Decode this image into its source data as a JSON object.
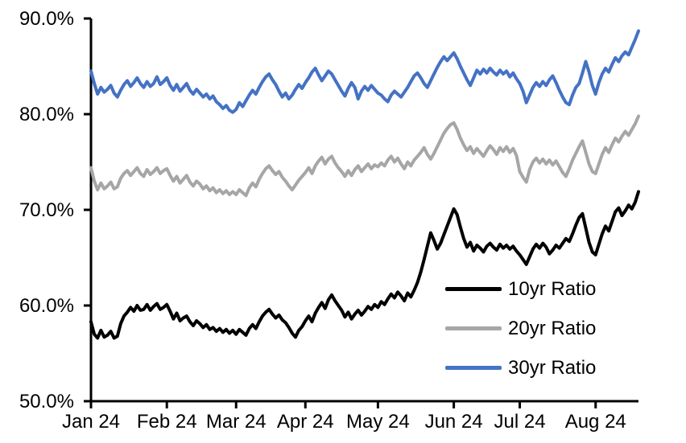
{
  "page": {
    "background_color": "#FFFFFF",
    "text_color": "#000000"
  },
  "chart_data": {
    "type": "line",
    "title": "",
    "x_axis": {
      "tick_labels": [
        "Jan 24",
        "Feb 24",
        "Mar 24",
        "Apr 24",
        "May 24",
        "Jun 24",
        "Jul 24",
        "Aug 24"
      ],
      "tick_indices": [
        0,
        23,
        44,
        65,
        87,
        110,
        130,
        153
      ],
      "n_points": 167
    },
    "y_axis": {
      "tick_labels": [
        "90.0%",
        "80.0%",
        "70.0%",
        "60.0%",
        "50.0%"
      ],
      "tick_values": [
        90,
        80,
        70,
        60,
        50
      ],
      "min": 50,
      "max": 90,
      "unit": "%"
    },
    "grid": "off",
    "legend": {
      "position": "inside-lower-right"
    },
    "series": [
      {
        "name": "10yr Ratio",
        "color": "#000000",
        "values": [
          58.3,
          57.0,
          56.6,
          57.4,
          56.7,
          56.9,
          57.3,
          56.6,
          56.8,
          58.1,
          58.9,
          59.3,
          59.8,
          59.4,
          60.0,
          59.5,
          59.6,
          60.1,
          59.5,
          59.9,
          60.2,
          59.6,
          59.8,
          60.1,
          59.4,
          58.6,
          59.2,
          58.4,
          58.7,
          58.9,
          58.3,
          57.9,
          58.4,
          58.1,
          57.7,
          58.0,
          57.5,
          57.7,
          57.3,
          57.6,
          57.2,
          57.5,
          57.1,
          57.4,
          57.0,
          57.5,
          57.2,
          56.9,
          57.6,
          58.0,
          57.6,
          58.3,
          58.9,
          59.3,
          59.6,
          59.1,
          58.7,
          59.0,
          58.5,
          58.2,
          57.7,
          57.1,
          56.7,
          57.4,
          57.8,
          58.4,
          58.9,
          58.3,
          59.2,
          59.8,
          60.3,
          59.7,
          60.6,
          61.1,
          60.5,
          60.0,
          59.5,
          58.8,
          59.3,
          58.6,
          59.1,
          59.5,
          59.0,
          59.4,
          59.9,
          59.6,
          60.1,
          59.8,
          60.4,
          60.1,
          60.7,
          61.2,
          60.8,
          61.4,
          61.0,
          60.5,
          61.3,
          60.9,
          61.6,
          62.4,
          63.5,
          64.8,
          66.2,
          67.6,
          66.8,
          65.9,
          66.5,
          67.4,
          68.3,
          69.2,
          70.1,
          69.5,
          68.2,
          67.0,
          66.1,
          66.6,
          65.7,
          66.3,
          66.0,
          65.6,
          66.2,
          66.5,
          66.1,
          65.8,
          66.4,
          66.0,
          66.3,
          65.9,
          66.2,
          65.7,
          65.3,
          64.8,
          64.3,
          65.1,
          65.9,
          66.4,
          66.0,
          66.5,
          66.1,
          65.4,
          65.8,
          66.3,
          66.0,
          66.5,
          67.0,
          66.7,
          67.5,
          68.4,
          69.2,
          69.6,
          68.1,
          66.6,
          65.6,
          65.3,
          66.4,
          67.5,
          68.3,
          67.8,
          68.8,
          69.8,
          70.2,
          69.4,
          69.9,
          70.5,
          70.1,
          70.8,
          71.9
        ]
      },
      {
        "name": "20yr Ratio",
        "color": "#A6A6A6",
        "values": [
          74.4,
          73.0,
          72.1,
          72.8,
          72.2,
          72.5,
          72.9,
          72.2,
          72.4,
          73.3,
          73.8,
          74.1,
          73.6,
          74.0,
          74.4,
          73.8,
          73.5,
          74.2,
          73.7,
          74.0,
          74.4,
          73.8,
          74.1,
          74.3,
          73.6,
          73.0,
          73.5,
          72.8,
          73.2,
          73.6,
          72.9,
          72.5,
          73.0,
          72.7,
          72.2,
          72.5,
          72.0,
          72.3,
          71.8,
          72.1,
          71.7,
          72.0,
          71.6,
          71.9,
          71.6,
          72.1,
          71.8,
          71.5,
          72.3,
          72.8,
          72.4,
          73.2,
          73.8,
          74.3,
          74.6,
          74.1,
          73.7,
          74.0,
          73.4,
          73.0,
          72.5,
          72.1,
          72.6,
          73.1,
          73.5,
          73.9,
          74.4,
          73.8,
          74.6,
          75.1,
          75.5,
          74.8,
          75.3,
          75.6,
          74.9,
          74.4,
          74.0,
          73.5,
          74.1,
          73.6,
          74.2,
          74.6,
          74.0,
          74.4,
          74.8,
          74.3,
          74.7,
          74.5,
          74.9,
          74.6,
          75.2,
          75.6,
          75.0,
          75.4,
          74.8,
          74.3,
          75.0,
          74.6,
          75.2,
          75.6,
          76.0,
          76.5,
          75.8,
          75.3,
          75.9,
          76.6,
          77.3,
          78.0,
          78.5,
          78.9,
          79.1,
          78.4,
          77.5,
          76.8,
          76.2,
          76.6,
          75.9,
          76.4,
          76.0,
          75.6,
          76.2,
          76.7,
          76.3,
          75.8,
          76.5,
          76.1,
          76.6,
          76.0,
          76.4,
          75.7,
          74.0,
          73.4,
          72.9,
          74.2,
          75.0,
          75.4,
          74.9,
          75.3,
          74.8,
          75.2,
          74.7,
          75.1,
          74.5,
          73.9,
          73.5,
          74.3,
          75.2,
          75.9,
          76.6,
          77.2,
          76.0,
          74.8,
          74.0,
          73.8,
          74.8,
          75.8,
          76.5,
          76.0,
          76.8,
          77.5,
          77.1,
          77.7,
          78.2,
          77.8,
          78.4,
          79.0,
          79.8
        ]
      },
      {
        "name": "30yr Ratio",
        "color": "#4472C4",
        "values": [
          84.5,
          83.2,
          82.1,
          82.8,
          82.3,
          82.6,
          83.0,
          82.2,
          81.8,
          82.5,
          83.1,
          83.5,
          82.9,
          83.3,
          83.8,
          83.2,
          82.8,
          83.4,
          82.9,
          83.2,
          83.9,
          83.1,
          83.4,
          83.8,
          83.0,
          82.5,
          83.1,
          82.4,
          82.8,
          83.2,
          82.5,
          82.1,
          82.6,
          82.2,
          81.8,
          82.1,
          81.6,
          81.9,
          81.3,
          81.0,
          80.6,
          80.9,
          80.4,
          80.2,
          80.5,
          81.2,
          80.8,
          81.4,
          82.0,
          82.5,
          82.1,
          82.8,
          83.4,
          83.9,
          84.2,
          83.6,
          83.1,
          82.4,
          81.8,
          82.2,
          81.6,
          82.0,
          82.6,
          83.1,
          82.7,
          83.3,
          83.8,
          84.4,
          84.8,
          84.1,
          83.5,
          84.0,
          84.5,
          84.2,
          83.6,
          83.0,
          82.4,
          81.9,
          82.7,
          83.3,
          82.8,
          81.6,
          82.4,
          82.9,
          82.5,
          83.0,
          82.6,
          82.2,
          82.0,
          81.6,
          81.3,
          82.0,
          82.4,
          82.1,
          81.8,
          82.3,
          82.8,
          83.4,
          84.0,
          84.3,
          83.8,
          83.2,
          82.8,
          83.5,
          84.2,
          84.9,
          85.5,
          86.0,
          85.6,
          86.0,
          86.4,
          85.8,
          85.0,
          84.3,
          83.6,
          83.0,
          83.8,
          84.6,
          84.2,
          84.7,
          84.3,
          84.8,
          84.4,
          84.1,
          84.6,
          84.2,
          84.5,
          83.9,
          84.3,
          83.7,
          83.2,
          82.4,
          81.2,
          82.0,
          82.8,
          83.3,
          82.9,
          83.4,
          83.0,
          83.6,
          84.0,
          83.3,
          82.5,
          81.8,
          81.2,
          81.0,
          82.0,
          82.8,
          83.2,
          84.3,
          85.5,
          84.4,
          83.0,
          82.1,
          83.3,
          84.2,
          84.8,
          84.4,
          85.2,
          85.9,
          85.5,
          86.1,
          86.5,
          86.2,
          87.0,
          87.8,
          88.7
        ]
      }
    ]
  }
}
